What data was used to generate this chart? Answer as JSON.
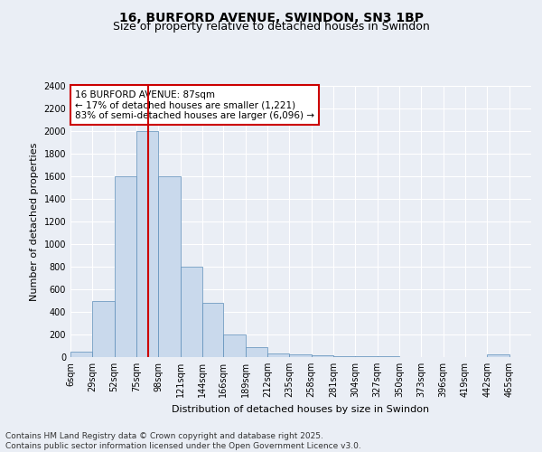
{
  "title": "16, BURFORD AVENUE, SWINDON, SN3 1BP",
  "subtitle": "Size of property relative to detached houses in Swindon",
  "xlabel": "Distribution of detached houses by size in Swindon",
  "ylabel": "Number of detached properties",
  "bin_labels": [
    "6sqm",
    "29sqm",
    "52sqm",
    "75sqm",
    "98sqm",
    "121sqm",
    "144sqm",
    "166sqm",
    "189sqm",
    "212sqm",
    "235sqm",
    "258sqm",
    "281sqm",
    "304sqm",
    "327sqm",
    "350sqm",
    "373sqm",
    "396sqm",
    "419sqm",
    "442sqm",
    "465sqm"
  ],
  "bar_values": [
    50,
    500,
    1600,
    2000,
    1600,
    800,
    480,
    200,
    90,
    35,
    25,
    15,
    10,
    5,
    5,
    0,
    0,
    0,
    0,
    25,
    0
  ],
  "bar_color": "#c9d9ec",
  "bar_edge_color": "#5b8db8",
  "ylim": [
    0,
    2400
  ],
  "yticks": [
    0,
    200,
    400,
    600,
    800,
    1000,
    1200,
    1400,
    1600,
    1800,
    2000,
    2200,
    2400
  ],
  "red_line_x": 87,
  "red_line_color": "#cc0000",
  "annotation_text": "16 BURFORD AVENUE: 87sqm\n← 17% of detached houses are smaller (1,221)\n83% of semi-detached houses are larger (6,096) →",
  "annotation_box_color": "#ffffff",
  "annotation_box_edge_color": "#cc0000",
  "footer_text": "Contains HM Land Registry data © Crown copyright and database right 2025.\nContains public sector information licensed under the Open Government Licence v3.0.",
  "background_color": "#eaeef5",
  "grid_color": "#ffffff",
  "title_fontsize": 10,
  "subtitle_fontsize": 9,
  "axis_label_fontsize": 8,
  "tick_fontsize": 7,
  "annotation_fontsize": 7.5,
  "footer_fontsize": 6.5,
  "bin_edges": [
    6,
    29,
    52,
    75,
    98,
    121,
    144,
    166,
    189,
    212,
    235,
    258,
    281,
    304,
    327,
    350,
    373,
    396,
    419,
    442,
    465,
    488
  ]
}
